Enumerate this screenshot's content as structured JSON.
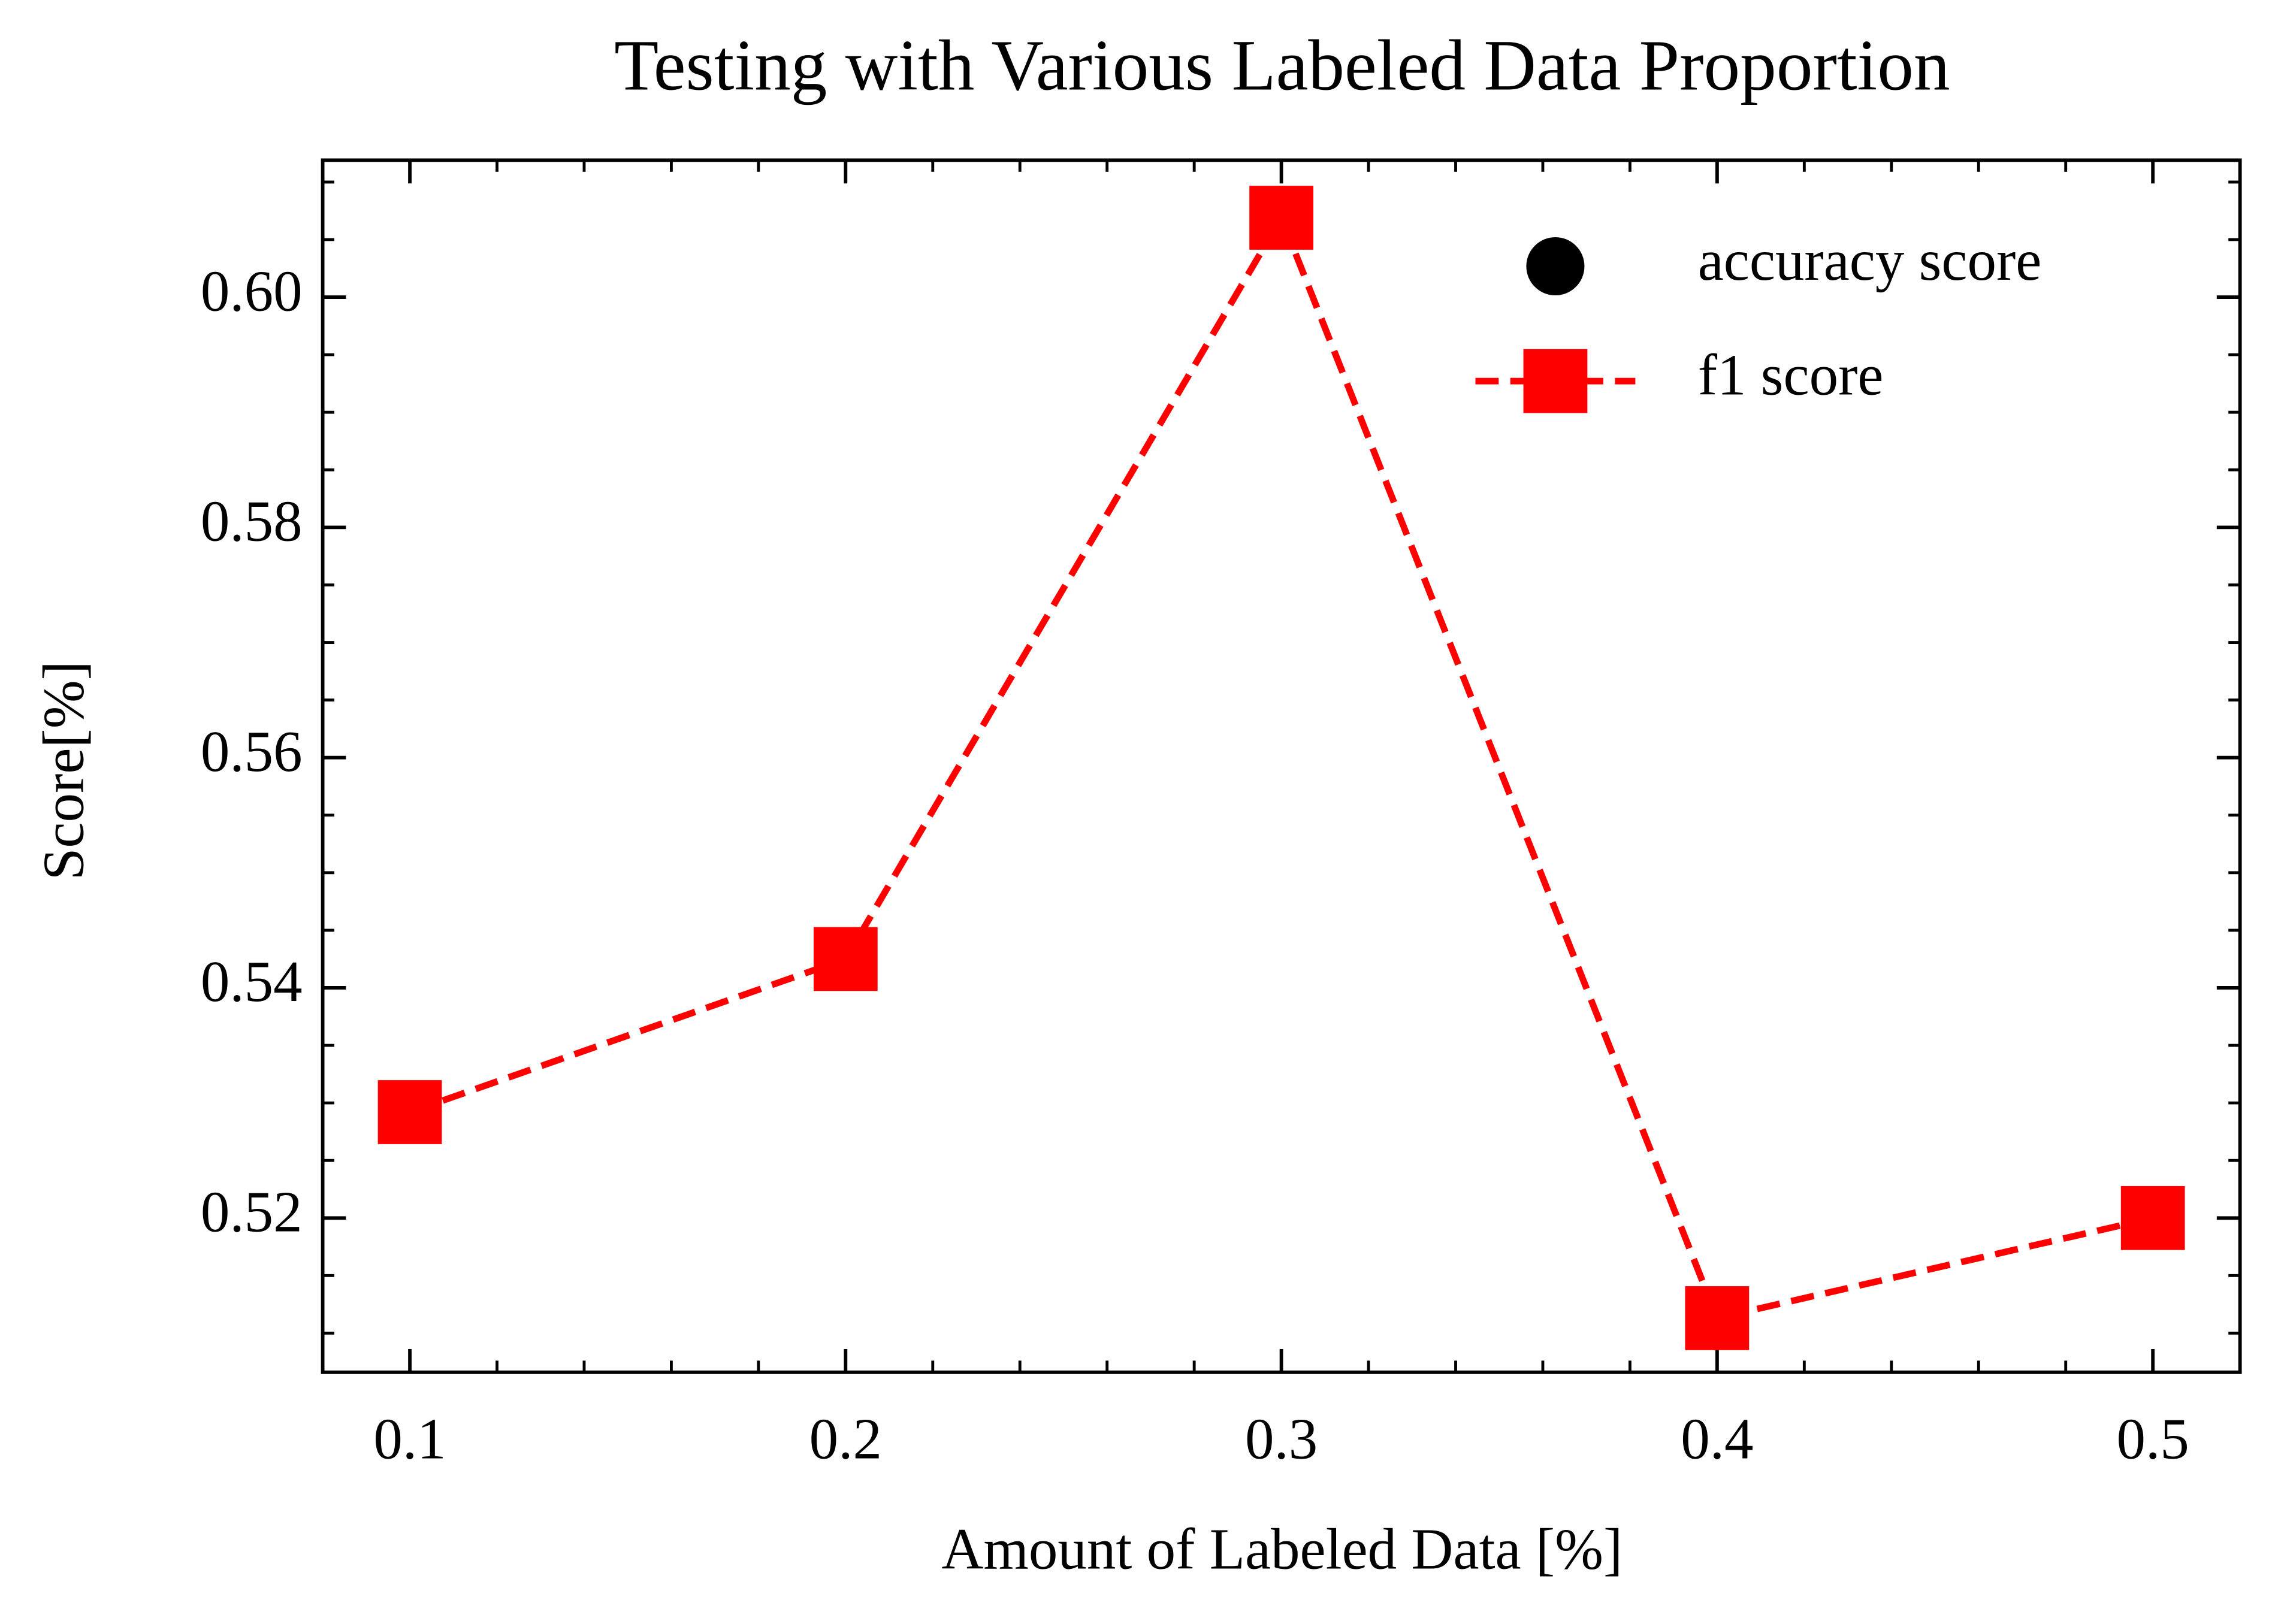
{
  "chart_data": {
    "type": "line",
    "title": "Testing with Various Labeled Data Proportion",
    "x_label": "Amount of Labeled Data [%]",
    "y_label": "Score[%]",
    "x": [
      0.1,
      0.2,
      0.3,
      0.4,
      0.5
    ],
    "series": [
      {
        "name": "accuracy score",
        "color": "#000000",
        "marker": "circle",
        "linestyle": "none",
        "values": [
          0.5292,
          0.5425,
          0.6069,
          0.5113,
          0.52
        ]
      },
      {
        "name": "f1 score",
        "color": "#ff0000",
        "marker": "square",
        "linestyle": "dashed",
        "values": [
          0.5292,
          0.5425,
          0.6069,
          0.5113,
          0.52
        ]
      }
    ],
    "xlim": [
      0.08,
      0.52
    ],
    "ylim": [
      0.5066,
      0.6119
    ],
    "xticks": [
      0.1,
      0.2,
      0.3,
      0.4,
      0.5
    ],
    "yticks": [
      {
        "value": 0.52,
        "label": "0.52"
      },
      {
        "value": 0.54,
        "label": "0.54"
      },
      {
        "value": 0.56,
        "label": "0.56"
      },
      {
        "value": 0.58,
        "label": "0.58"
      },
      {
        "value": 0.6,
        "label": "0.60"
      }
    ],
    "xticks_minor": [
      0.08,
      0.12,
      0.14,
      0.16,
      0.18,
      0.22,
      0.24,
      0.26,
      0.28,
      0.32,
      0.34,
      0.36,
      0.38,
      0.42,
      0.44,
      0.46,
      0.48,
      0.52
    ],
    "yticks_minor": [
      0.51,
      0.515,
      0.525,
      0.53,
      0.535,
      0.545,
      0.55,
      0.555,
      0.565,
      0.57,
      0.575,
      0.585,
      0.59,
      0.595,
      0.605,
      0.61
    ],
    "grid": false,
    "legend": "upper right"
  }
}
